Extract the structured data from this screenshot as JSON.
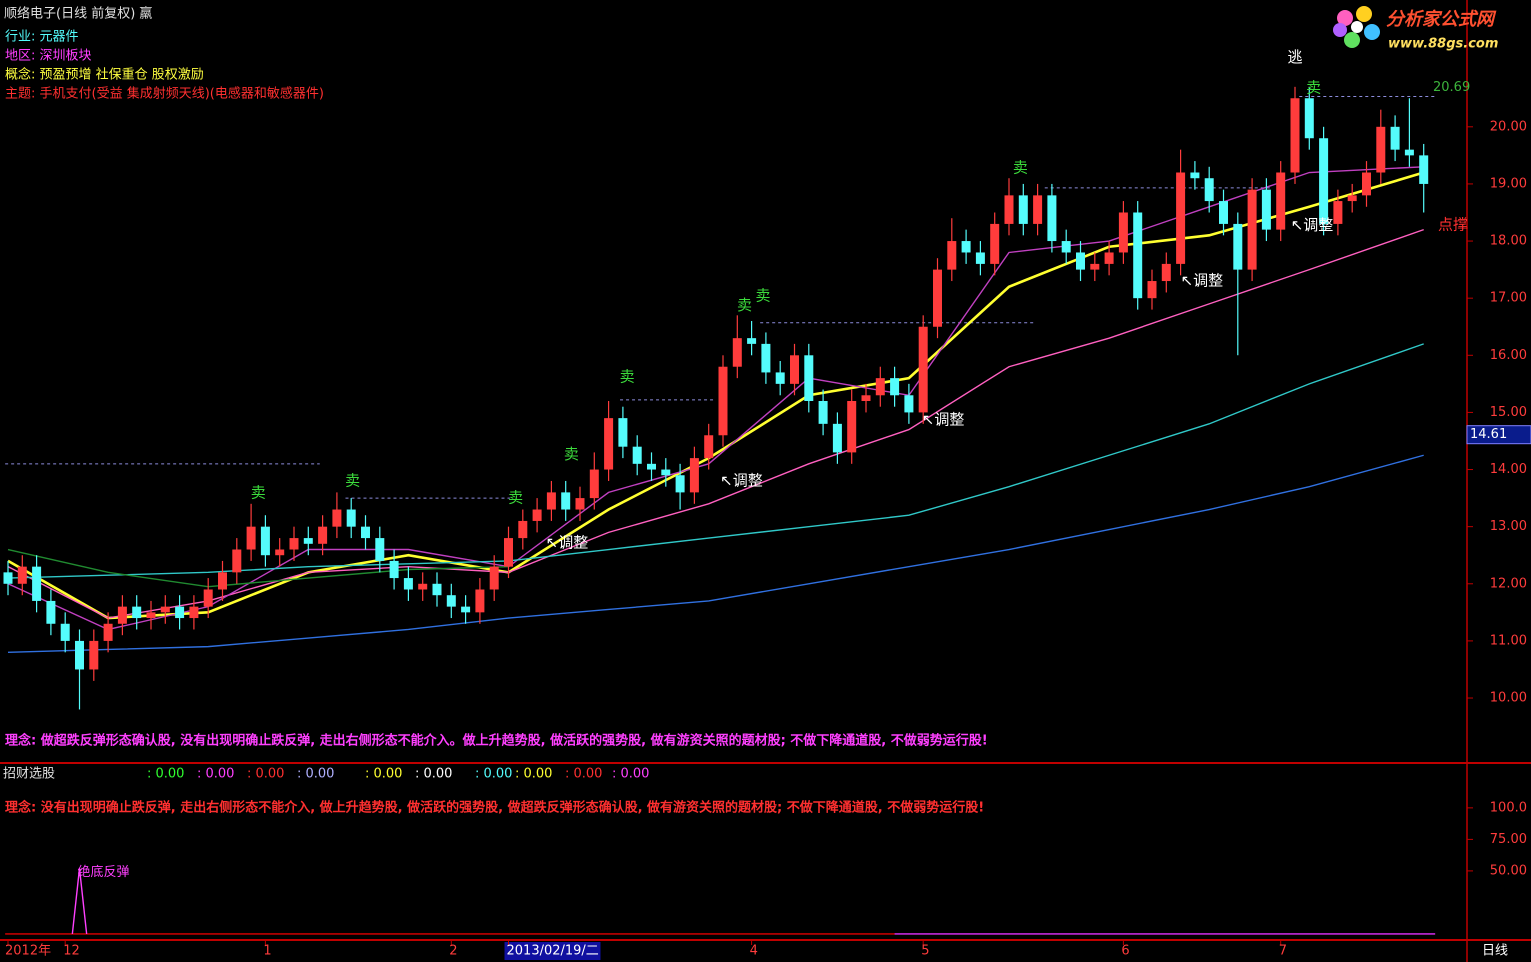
{
  "chart_data": [
    {
      "type": "candlestick",
      "title": "顺络电子(日线 前复权) 羸",
      "info": [
        {
          "text": "行业: 元器件",
          "color": "#54fcfc"
        },
        {
          "text": "地区: 深圳板块",
          "color": "#ff40ff"
        },
        {
          "text": "概念: 预盈预增 社保重仓 股权激励",
          "color": "#ffff40"
        },
        {
          "text": "主题: 手机支付(受益 集成射频天线)(电感器和敏感器件)",
          "color": "#ff3030"
        }
      ],
      "note": "理念: 做超跌反弹形态确认股, 没有出现明确止跌反弹, 走出右侧形态不能介入。做上升趋势股, 做活跃的强势股, 做有游资关照的题材股; 不做下降通道股, 不做弱势运行股!",
      "note_color": "#ff40ff",
      "categories": [
        "2012年",
        null,
        null,
        null,
        "12",
        null,
        null,
        null,
        null,
        null,
        null,
        null,
        null,
        null,
        null,
        null,
        null,
        null,
        "1",
        null,
        null,
        null,
        null,
        null,
        null,
        null,
        null,
        null,
        null,
        null,
        null,
        "2",
        null,
        null,
        null,
        "2013/02/19/二",
        null,
        null,
        null,
        null,
        null,
        null,
        null,
        null,
        null,
        null,
        null,
        null,
        null,
        null,
        null,
        null,
        "4",
        null,
        null,
        null,
        null,
        null,
        null,
        null,
        null,
        null,
        null,
        null,
        "5",
        null,
        null,
        null,
        null,
        null,
        null,
        null,
        null,
        null,
        null,
        null,
        null,
        null,
        "6",
        null,
        null,
        null,
        null,
        null,
        null,
        null,
        null,
        null,
        null,
        "7",
        null,
        null,
        null,
        null,
        null,
        null,
        null,
        null,
        null,
        null
      ],
      "highlight_category": 35,
      "open": [
        12.2,
        12.0,
        12.3,
        11.7,
        11.3,
        11.0,
        10.5,
        11.0,
        11.3,
        11.6,
        11.4,
        11.5,
        11.6,
        11.4,
        11.6,
        11.9,
        12.2,
        12.6,
        13.0,
        12.5,
        12.6,
        12.8,
        12.7,
        13.0,
        13.3,
        13.0,
        12.8,
        12.4,
        12.1,
        11.9,
        12.0,
        11.8,
        11.6,
        11.5,
        11.9,
        12.3,
        12.8,
        13.1,
        13.3,
        13.6,
        13.3,
        13.5,
        14.0,
        14.9,
        14.4,
        14.1,
        14.0,
        13.9,
        13.6,
        14.2,
        14.6,
        15.8,
        16.3,
        16.2,
        15.7,
        15.5,
        16.0,
        15.2,
        14.8,
        14.3,
        15.2,
        15.3,
        15.6,
        15.3,
        15.0,
        16.5,
        17.5,
        18.0,
        17.8,
        17.6,
        18.3,
        18.8,
        18.3,
        18.8,
        18.0,
        17.8,
        17.5,
        17.6,
        17.8,
        18.5,
        17.0,
        17.3,
        17.6,
        19.2,
        19.1,
        18.7,
        18.3,
        17.5,
        18.9,
        18.2,
        19.2,
        20.5,
        19.8,
        18.3,
        18.7,
        18.8,
        19.2,
        20.0,
        19.6,
        19.5
      ],
      "high": [
        12.4,
        12.5,
        12.5,
        11.9,
        11.5,
        11.2,
        11.2,
        11.5,
        11.8,
        11.8,
        11.7,
        11.8,
        11.8,
        11.8,
        12.1,
        12.4,
        12.8,
        13.4,
        13.2,
        12.8,
        13.0,
        13.0,
        13.2,
        13.6,
        13.5,
        13.2,
        13.0,
        12.6,
        12.3,
        12.2,
        12.2,
        12.0,
        11.8,
        12.1,
        12.5,
        13.0,
        13.3,
        13.5,
        13.8,
        13.8,
        13.7,
        14.3,
        15.2,
        15.1,
        14.6,
        14.3,
        14.2,
        14.1,
        14.4,
        14.8,
        16.0,
        16.7,
        16.6,
        16.4,
        15.9,
        16.2,
        16.2,
        15.4,
        15.0,
        15.4,
        15.5,
        15.8,
        15.8,
        15.5,
        16.7,
        17.7,
        18.4,
        18.2,
        18.0,
        18.5,
        19.1,
        19.0,
        19.0,
        19.0,
        18.2,
        18.0,
        17.8,
        18.0,
        18.7,
        18.7,
        17.5,
        17.8,
        19.6,
        19.4,
        19.3,
        18.9,
        18.5,
        19.1,
        19.1,
        19.4,
        20.7,
        20.7,
        20.0,
        18.9,
        19.0,
        19.4,
        20.3,
        20.2,
        20.5,
        19.7
      ],
      "low": [
        11.8,
        11.8,
        11.5,
        11.1,
        10.8,
        9.8,
        10.3,
        10.8,
        11.1,
        11.2,
        11.2,
        11.3,
        11.2,
        11.2,
        11.4,
        11.7,
        12.0,
        12.4,
        12.3,
        12.3,
        12.4,
        12.5,
        12.5,
        12.8,
        12.8,
        12.6,
        12.2,
        11.9,
        11.7,
        11.7,
        11.6,
        11.4,
        11.3,
        11.3,
        11.7,
        12.1,
        12.6,
        12.9,
        13.1,
        13.1,
        13.1,
        13.3,
        13.8,
        14.2,
        13.9,
        13.8,
        13.7,
        13.3,
        13.4,
        14.0,
        14.4,
        15.6,
        16.0,
        15.5,
        15.3,
        15.3,
        15.0,
        14.6,
        14.1,
        14.1,
        15.0,
        15.1,
        15.1,
        14.8,
        14.8,
        16.3,
        17.3,
        17.6,
        17.4,
        17.4,
        18.1,
        18.1,
        18.1,
        17.8,
        17.6,
        17.3,
        17.3,
        17.4,
        17.6,
        16.8,
        16.8,
        17.1,
        17.4,
        18.9,
        18.5,
        18.1,
        16.0,
        17.3,
        18.0,
        18.0,
        19.0,
        19.6,
        18.1,
        18.1,
        18.5,
        18.6,
        19.0,
        19.4,
        19.3,
        18.5
      ],
      "close": [
        12.0,
        12.3,
        11.7,
        11.3,
        11.0,
        10.5,
        11.0,
        11.3,
        11.6,
        11.4,
        11.5,
        11.6,
        11.4,
        11.6,
        11.9,
        12.2,
        12.6,
        13.0,
        12.5,
        12.6,
        12.8,
        12.7,
        13.0,
        13.3,
        13.0,
        12.8,
        12.4,
        12.1,
        11.9,
        12.0,
        11.8,
        11.6,
        11.5,
        11.9,
        12.3,
        12.8,
        13.1,
        13.3,
        13.6,
        13.3,
        13.5,
        14.0,
        14.9,
        14.4,
        14.1,
        14.0,
        13.9,
        13.6,
        14.2,
        14.6,
        15.8,
        16.3,
        16.2,
        15.7,
        15.5,
        16.0,
        15.2,
        14.8,
        14.3,
        15.2,
        15.3,
        15.6,
        15.3,
        15.0,
        16.5,
        17.5,
        18.0,
        17.8,
        17.6,
        18.3,
        18.8,
        18.3,
        18.8,
        18.0,
        17.8,
        17.5,
        17.6,
        17.8,
        18.5,
        17.0,
        17.3,
        17.6,
        19.2,
        19.1,
        18.7,
        18.3,
        17.5,
        18.9,
        18.2,
        19.2,
        20.5,
        19.8,
        18.3,
        18.7,
        18.8,
        19.2,
        20.0,
        19.6,
        19.5,
        19.0
      ],
      "up_color": "#ff3c3c",
      "down_color": "#54fcfc",
      "series": [
        {
          "color": "#ffff30",
          "x": [
            0,
            7,
            14,
            21,
            28,
            35,
            42,
            49,
            56,
            63,
            70,
            77,
            84,
            91,
            99
          ],
          "values": [
            12.4,
            11.4,
            11.5,
            12.2,
            12.5,
            12.2,
            13.3,
            14.2,
            15.3,
            15.6,
            17.2,
            17.9,
            18.1,
            18.6,
            19.2
          ]
        },
        {
          "color": "#ff60c0",
          "x": [
            0,
            7,
            14,
            21,
            28,
            35,
            42,
            49,
            56,
            63,
            70,
            77,
            84,
            91,
            99
          ],
          "values": [
            12.3,
            11.4,
            11.7,
            12.2,
            12.3,
            12.2,
            12.9,
            13.4,
            14.1,
            14.7,
            15.8,
            16.3,
            16.9,
            17.5,
            18.2
          ]
        },
        {
          "color": "#c040c0",
          "x": [
            0,
            7,
            14,
            21,
            28,
            35,
            42,
            49,
            56,
            63,
            70,
            77,
            84,
            91,
            99
          ],
          "values": [
            12.0,
            11.2,
            11.6,
            12.6,
            12.6,
            12.3,
            13.6,
            14.1,
            15.6,
            15.3,
            17.8,
            18.0,
            18.6,
            19.2,
            19.3
          ]
        },
        {
          "color": "#30c8c8",
          "x": [
            0,
            7,
            14,
            21,
            28,
            35,
            42,
            49,
            56,
            63,
            70,
            77,
            84,
            91,
            99
          ],
          "values": [
            12.1,
            12.15,
            12.2,
            12.3,
            12.35,
            12.4,
            12.6,
            12.8,
            13.0,
            13.2,
            13.7,
            14.25,
            14.8,
            15.5,
            16.2
          ]
        },
        {
          "color": "#3070e0",
          "x": [
            0,
            7,
            14,
            21,
            28,
            35,
            42,
            49,
            56,
            63,
            70,
            77,
            84,
            91,
            99
          ],
          "values": [
            10.8,
            10.85,
            10.9,
            11.05,
            11.2,
            11.4,
            11.55,
            11.7,
            12.0,
            12.3,
            12.6,
            12.95,
            13.3,
            13.7,
            14.25
          ]
        },
        {
          "color": "#208a30",
          "x": [
            0,
            7,
            14,
            21,
            28,
            35,
            42,
            49,
            56,
            63,
            70,
            77,
            84,
            91,
            99
          ],
          "values": [
            12.6,
            12.2,
            11.95,
            12.1,
            12.25,
            12.3,
            null,
            null,
            null,
            null,
            null,
            null,
            null,
            null,
            null
          ]
        }
      ],
      "levels": [
        {
          "x": [
            -0.2,
            21.8
          ],
          "value": 14.1
        },
        {
          "x": [
            23.6,
            35.1
          ],
          "value": 13.5
        },
        {
          "x": [
            42.8,
            49.4
          ],
          "value": 15.22
        },
        {
          "x": [
            52.6,
            71.8
          ],
          "value": 16.57
        },
        {
          "x": [
            72.5,
            88.3
          ],
          "value": 18.93
        },
        {
          "x": [
            90.3,
            99.8
          ],
          "value": 20.53
        }
      ],
      "level_color": "#8c8cdc",
      "annotations": [
        {
          "text": "卖",
          "x": 17.5,
          "y": 13.59,
          "color": "#3cdc3c"
        },
        {
          "text": "卖",
          "x": 24.1,
          "y": 13.8,
          "color": "#3cdc3c"
        },
        {
          "text": "卖",
          "x": 35.5,
          "y": 13.5,
          "color": "#3cdc3c"
        },
        {
          "text": "卖",
          "x": 39.4,
          "y": 14.26,
          "color": "#3cdc3c"
        },
        {
          "text": "卖",
          "x": 43.3,
          "y": 15.62,
          "color": "#3cdc3c"
        },
        {
          "text": "卖",
          "x": 51.5,
          "y": 16.87,
          "color": "#3cdc3c"
        },
        {
          "text": "卖",
          "x": 52.8,
          "y": 17.04,
          "color": "#3cdc3c"
        },
        {
          "text": "卖",
          "x": 70.8,
          "y": 19.28,
          "color": "#3cdc3c"
        },
        {
          "text": "卖",
          "x": 91.3,
          "y": 20.68,
          "color": "#3cdc3c"
        },
        {
          "text": "逃",
          "x": 90,
          "y": 21.21,
          "color": "#ffffff"
        },
        {
          "text": "↖调整",
          "x": 37.6,
          "y": 12.71,
          "color": "#ffffff"
        },
        {
          "text": "↖调整",
          "x": 49.8,
          "y": 13.8,
          "color": "#ffffff"
        },
        {
          "text": "↖调整",
          "x": 63.9,
          "y": 14.87,
          "color": "#ffffff"
        },
        {
          "text": "↖调整",
          "x": 82,
          "y": 17.3,
          "color": "#ffffff"
        },
        {
          "text": "↖调整",
          "x": 89.7,
          "y": 18.27,
          "color": "#ffffff"
        },
        {
          "text": "点撑",
          "x": 100,
          "y": 18.28,
          "color": "#ff3030"
        }
      ],
      "high_mark": 20.69,
      "last_price": 14.61,
      "ylim": [
        8.88,
        22.22
      ],
      "yticks": [
        {
          "value": 10,
          "label": "10.00"
        },
        {
          "value": 11,
          "label": "11.00"
        },
        {
          "value": 12,
          "label": "12.00"
        },
        {
          "value": 13,
          "label": "13.00"
        },
        {
          "value": 14,
          "label": "14.00"
        },
        {
          "value": 15,
          "label": "15.00"
        },
        {
          "value": 16,
          "label": "16.00"
        },
        {
          "value": 17,
          "label": "17.00"
        },
        {
          "value": 18,
          "label": "18.00"
        },
        {
          "value": 19,
          "label": "19.00"
        },
        {
          "value": 20,
          "label": "20.00"
        }
      ]
    },
    {
      "type": "line",
      "title": "招财选股",
      "readouts": [
        {
          "value": 0,
          "label": ": 0.00",
          "color": "#30ff30"
        },
        {
          "value": 0,
          "label": ": 0.00",
          "color": "#ff40ff"
        },
        {
          "value": 0,
          "label": ": 0.00",
          "color": "#ff3030"
        },
        {
          "value": 0,
          "label": ": 0.00",
          "color": "#b0b0ff"
        },
        {
          "value": 0,
          "label": ": 0.00",
          "color": "#ffff30"
        },
        {
          "value": 0,
          "label": ": 0.00",
          "color": "#ffffff"
        },
        {
          "value": 0,
          "label": ": 0.00",
          "color": "#54fcfc"
        },
        {
          "value": 0,
          "label": ": 0.00",
          "color": "#ffff30"
        },
        {
          "value": 0,
          "label": ": 0.00",
          "color": "#ff3030"
        },
        {
          "value": 0,
          "label": ": 0.00",
          "color": "#ff40ff"
        }
      ],
      "note": "理念: 没有出现明确止跌反弹, 走出右侧形态不能介入, 做上升趋势股, 做活跃的强势股, 做超跌反弹形态确认股, 做有游资关照的题材股; 不做下降通道股, 不做弱势运行股!",
      "note_color": "#ff3030",
      "series": [
        {
          "color": "#e00000",
          "x": [
            -0.2,
            99.8
          ],
          "values": [
            0,
            0
          ]
        },
        {
          "color": "#c030ff",
          "x": [
            62,
            99.8
          ],
          "values": [
            0,
            0
          ]
        },
        {
          "name": "绝底反弹",
          "color": "#ff40ff",
          "x": [
            4.5,
            5,
            5.5
          ],
          "values": [
            0,
            52,
            0
          ]
        }
      ],
      "ylim": [
        -4.8,
        134
      ],
      "yticks": [
        {
          "value": 50,
          "label": "50.00"
        },
        {
          "value": 75,
          "label": "75.00"
        },
        {
          "value": 100,
          "label": "100.0"
        }
      ]
    }
  ],
  "watermark": {
    "title": "分析家公式网",
    "url": "www.88gs.com"
  },
  "period_label": "日线"
}
